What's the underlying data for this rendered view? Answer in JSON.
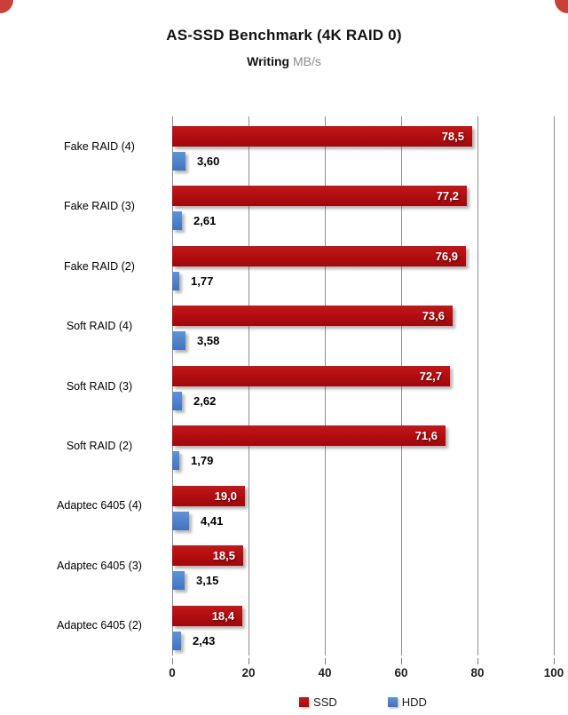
{
  "chart_data": {
    "type": "bar",
    "orientation": "horizontal",
    "title": "AS-SSD Benchmark (4K RAID 0)",
    "subtitle": {
      "metric": "Writing",
      "unit": "MB/s"
    },
    "categories": [
      "Fake RAID (4)",
      "Fake RAID (3)",
      "Fake RAID (2)",
      "Soft RAID (4)",
      "Soft RAID (3)",
      "Soft RAID (2)",
      "Adaptec 6405 (4)",
      "Adaptec 6405 (3)",
      "Adaptec 6405 (2)"
    ],
    "series": [
      {
        "name": "SSD",
        "color": "#b00d10",
        "values": [
          78.5,
          77.2,
          76.9,
          73.6,
          72.7,
          71.6,
          19.0,
          18.5,
          18.4
        ],
        "labels": [
          "78,5",
          "77,2",
          "76,9",
          "73,6",
          "72,7",
          "71,6",
          "19,0",
          "18,5",
          "18,4"
        ]
      },
      {
        "name": "HDD",
        "color": "#4e82ca",
        "values": [
          3.6,
          2.61,
          1.77,
          3.58,
          2.62,
          1.79,
          4.41,
          3.15,
          2.43
        ],
        "labels": [
          "3,60",
          "2,61",
          "1,77",
          "3,58",
          "2,62",
          "1,79",
          "4,41",
          "3,15",
          "2,43"
        ]
      }
    ],
    "x_axis": {
      "min": 0,
      "max": 100,
      "tick_labels": [
        "0",
        "20",
        "40",
        "60",
        "80",
        "100"
      ]
    },
    "legend": {
      "position": "bottom",
      "entries": [
        {
          "label": "SSD",
          "color": "#c00c0e"
        },
        {
          "label": "HDD",
          "color": "#4e82ca"
        }
      ]
    },
    "gridlines": "vertical"
  }
}
